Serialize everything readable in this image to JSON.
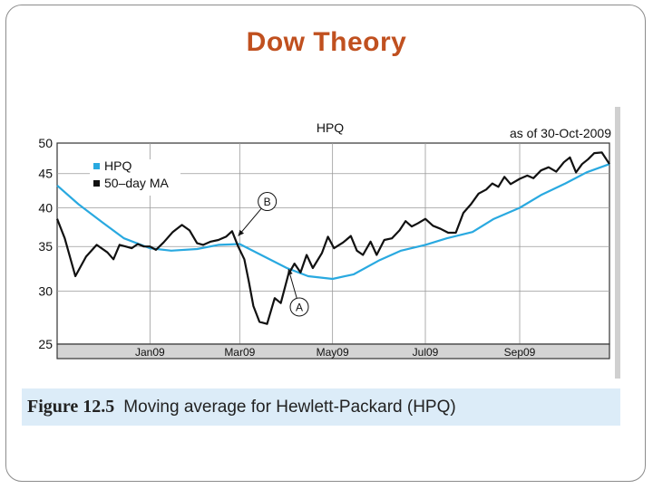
{
  "slide": {
    "title": "Dow Theory"
  },
  "figure": {
    "number": "Figure 12.5",
    "caption": "Moving average for Hewlett-Packard (HPQ)"
  },
  "chart_data": {
    "type": "line",
    "title": "HPQ",
    "subtitle": "as of 30-Oct-2009",
    "xlabel": "",
    "ylabel": "",
    "ylim": [
      25,
      50
    ],
    "y_scale": "log",
    "yticks": [
      25,
      30,
      35,
      40,
      45,
      50
    ],
    "xlim": [
      "2008-11-01",
      "2009-10-30"
    ],
    "xticks": [
      {
        "date": "2009-01-01",
        "label": "Jan09"
      },
      {
        "date": "2009-03-01",
        "label": "Mar09"
      },
      {
        "date": "2009-05-01",
        "label": "May09"
      },
      {
        "date": "2009-07-01",
        "label": "Jul09"
      },
      {
        "date": "2009-09-01",
        "label": "Sep09"
      }
    ],
    "grid": true,
    "legend_placement": "top-left",
    "series": [
      {
        "name": "HPQ",
        "color": "#29a9e0",
        "points": [
          [
            "2008-11-01",
            43.2
          ],
          [
            "2008-11-15",
            40.5
          ],
          [
            "2008-12-01",
            38.0
          ],
          [
            "2008-12-15",
            36.0
          ],
          [
            "2009-01-01",
            34.8
          ],
          [
            "2009-01-15",
            34.5
          ],
          [
            "2009-02-01",
            34.7
          ],
          [
            "2009-02-15",
            35.2
          ],
          [
            "2009-03-01",
            35.3
          ],
          [
            "2009-03-15",
            34.0
          ],
          [
            "2009-04-01",
            32.5
          ],
          [
            "2009-04-15",
            31.6
          ],
          [
            "2009-05-01",
            31.3
          ],
          [
            "2009-05-15",
            31.8
          ],
          [
            "2009-06-01",
            33.4
          ],
          [
            "2009-06-15",
            34.5
          ],
          [
            "2009-07-01",
            35.2
          ],
          [
            "2009-07-15",
            36.0
          ],
          [
            "2009-08-01",
            36.8
          ],
          [
            "2009-08-15",
            38.5
          ],
          [
            "2009-09-01",
            40.0
          ],
          [
            "2009-09-15",
            41.8
          ],
          [
            "2009-10-01",
            43.5
          ],
          [
            "2009-10-15",
            45.2
          ],
          [
            "2009-10-30",
            46.5
          ]
        ]
      },
      {
        "name": "50–day MA",
        "color": "#111111",
        "points": [
          [
            "2008-11-01",
            38.5
          ],
          [
            "2008-11-06",
            36.0
          ],
          [
            "2008-11-13",
            31.6
          ],
          [
            "2008-11-20",
            33.8
          ],
          [
            "2008-11-27",
            35.2
          ],
          [
            "2008-12-04",
            34.3
          ],
          [
            "2008-12-08",
            33.5
          ],
          [
            "2008-12-12",
            35.2
          ],
          [
            "2008-12-16",
            35.0
          ],
          [
            "2008-12-20",
            34.8
          ],
          [
            "2008-12-24",
            35.3
          ],
          [
            "2008-12-28",
            35.0
          ],
          [
            "2009-01-01",
            35.0
          ],
          [
            "2009-01-05",
            34.6
          ],
          [
            "2009-01-10",
            35.5
          ],
          [
            "2009-01-16",
            36.8
          ],
          [
            "2009-01-22",
            37.7
          ],
          [
            "2009-01-27",
            37.0
          ],
          [
            "2009-02-01",
            35.4
          ],
          [
            "2009-02-05",
            35.2
          ],
          [
            "2009-02-10",
            35.6
          ],
          [
            "2009-02-15",
            35.8
          ],
          [
            "2009-02-20",
            36.2
          ],
          [
            "2009-02-24",
            36.9
          ],
          [
            "2009-02-28",
            35.0
          ],
          [
            "2009-03-04",
            33.5
          ],
          [
            "2009-03-07",
            31.0
          ],
          [
            "2009-03-10",
            28.5
          ],
          [
            "2009-03-14",
            27.0
          ],
          [
            "2009-03-19",
            26.8
          ],
          [
            "2009-03-24",
            29.3
          ],
          [
            "2009-03-28",
            28.8
          ],
          [
            "2009-04-02",
            31.8
          ],
          [
            "2009-04-06",
            33.0
          ],
          [
            "2009-04-10",
            32.0
          ],
          [
            "2009-04-14",
            34.0
          ],
          [
            "2009-04-18",
            32.5
          ],
          [
            "2009-04-24",
            34.2
          ],
          [
            "2009-04-28",
            36.2
          ],
          [
            "2009-05-02",
            34.8
          ],
          [
            "2009-05-08",
            35.5
          ],
          [
            "2009-05-13",
            36.3
          ],
          [
            "2009-05-17",
            34.5
          ],
          [
            "2009-05-21",
            34.0
          ],
          [
            "2009-05-26",
            35.6
          ],
          [
            "2009-05-30",
            34.0
          ],
          [
            "2009-06-04",
            35.8
          ],
          [
            "2009-06-09",
            36.0
          ],
          [
            "2009-06-14",
            37.0
          ],
          [
            "2009-06-18",
            38.2
          ],
          [
            "2009-06-22",
            37.5
          ],
          [
            "2009-06-26",
            37.9
          ],
          [
            "2009-07-01",
            38.5
          ],
          [
            "2009-07-06",
            37.6
          ],
          [
            "2009-07-11",
            37.2
          ],
          [
            "2009-07-16",
            36.7
          ],
          [
            "2009-07-21",
            36.7
          ],
          [
            "2009-07-26",
            39.3
          ],
          [
            "2009-07-31",
            40.5
          ],
          [
            "2009-08-05",
            42.0
          ],
          [
            "2009-08-10",
            42.6
          ],
          [
            "2009-08-14",
            43.5
          ],
          [
            "2009-08-18",
            43.0
          ],
          [
            "2009-08-22",
            44.5
          ],
          [
            "2009-08-26",
            43.4
          ],
          [
            "2009-09-01",
            44.2
          ],
          [
            "2009-09-06",
            44.7
          ],
          [
            "2009-09-10",
            44.3
          ],
          [
            "2009-09-15",
            45.5
          ],
          [
            "2009-09-20",
            46.0
          ],
          [
            "2009-09-25",
            45.3
          ],
          [
            "2009-09-30",
            46.8
          ],
          [
            "2009-10-04",
            47.6
          ],
          [
            "2009-10-08",
            45.2
          ],
          [
            "2009-10-12",
            46.5
          ],
          [
            "2009-10-16",
            47.3
          ],
          [
            "2009-10-20",
            48.3
          ],
          [
            "2009-10-25",
            48.4
          ],
          [
            "2009-10-30",
            46.5
          ]
        ]
      }
    ],
    "annotations": [
      {
        "label": "A",
        "date": "2009-04-02",
        "value": 32.4
      },
      {
        "label": "B",
        "date": "2009-02-28",
        "value": 36.3
      }
    ]
  }
}
